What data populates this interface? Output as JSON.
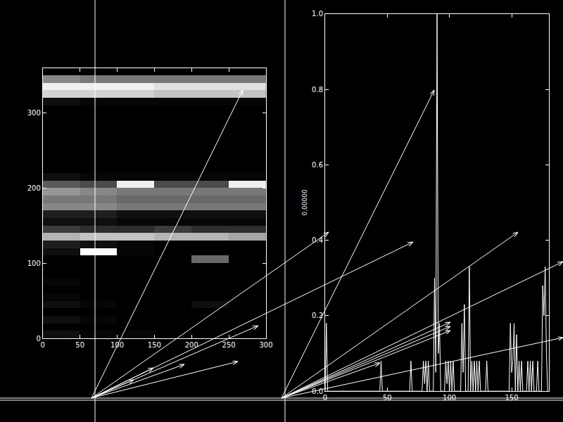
{
  "chart_data": [
    {
      "type": "heatmap",
      "x": [
        25,
        75,
        125,
        175,
        225,
        275
      ],
      "y": [
        5,
        15,
        25,
        35,
        45,
        55,
        65,
        75,
        85,
        95,
        105,
        115,
        125,
        135,
        145,
        155,
        165,
        175,
        185,
        195,
        205,
        215,
        225,
        235,
        245,
        255,
        265,
        275,
        285,
        295,
        305,
        315,
        325,
        335,
        345,
        355
      ],
      "z": [
        [
          0.15,
          0.12,
          0.12,
          0.1,
          0.1,
          0.1
        ],
        [
          0.1,
          0.1,
          0.1,
          0.1,
          0.1,
          0.1
        ],
        [
          0.15,
          0.12,
          0.1,
          0.1,
          0.1,
          0.1
        ],
        [
          0.1,
          0.1,
          0.1,
          0.1,
          0.1,
          0.1
        ],
        [
          0.15,
          0.12,
          0.1,
          0.1,
          0.15,
          0.1
        ],
        [
          0.12,
          0.1,
          0.1,
          0.1,
          0.1,
          0.1
        ],
        [
          0.1,
          0.1,
          0.1,
          0.1,
          0.1,
          0.1
        ],
        [
          0.12,
          0.1,
          0.1,
          0.1,
          0.1,
          0.1
        ],
        [
          0.1,
          0.1,
          0.1,
          0.1,
          0.1,
          0.1
        ],
        [
          0.1,
          0.1,
          0.1,
          0.1,
          0.1,
          0.1
        ],
        [
          0.1,
          0.1,
          0.1,
          0.1,
          0.45,
          0.1
        ],
        [
          0.15,
          0.95,
          0.12,
          0.1,
          0.1,
          0.1
        ],
        [
          0.2,
          0.15,
          0.12,
          0.1,
          0.1,
          0.1
        ],
        [
          0.7,
          0.75,
          0.75,
          0.7,
          0.7,
          0.65
        ],
        [
          0.3,
          0.25,
          0.25,
          0.3,
          0.25,
          0.25
        ],
        [
          0.15,
          0.15,
          0.12,
          0.12,
          0.12,
          0.12
        ],
        [
          0.2,
          0.2,
          0.15,
          0.15,
          0.15,
          0.15
        ],
        [
          0.55,
          0.55,
          0.5,
          0.5,
          0.5,
          0.5
        ],
        [
          0.5,
          0.5,
          0.45,
          0.45,
          0.45,
          0.45
        ],
        [
          0.6,
          0.55,
          0.5,
          0.5,
          0.5,
          0.5
        ],
        [
          0.4,
          0.35,
          0.9,
          0.35,
          0.35,
          0.9
        ],
        [
          0.15,
          0.12,
          0.12,
          0.12,
          0.12,
          0.12
        ],
        [
          0.1,
          0.1,
          0.1,
          0.1,
          0.1,
          0.1
        ],
        [
          0.1,
          0.1,
          0.1,
          0.1,
          0.1,
          0.1
        ],
        [
          0.1,
          0.1,
          0.1,
          0.1,
          0.1,
          0.1
        ],
        [
          0.1,
          0.1,
          0.1,
          0.1,
          0.1,
          0.1
        ],
        [
          0.1,
          0.1,
          0.1,
          0.1,
          0.1,
          0.1
        ],
        [
          0.1,
          0.1,
          0.1,
          0.1,
          0.1,
          0.1
        ],
        [
          0.1,
          0.1,
          0.1,
          0.1,
          0.1,
          0.1
        ],
        [
          0.1,
          0.1,
          0.1,
          0.1,
          0.1,
          0.1
        ],
        [
          0.1,
          0.1,
          0.1,
          0.1,
          0.1,
          0.1
        ],
        [
          0.15,
          0.12,
          0.12,
          0.12,
          0.12,
          0.12
        ],
        [
          0.8,
          0.8,
          0.8,
          0.75,
          0.75,
          0.75
        ],
        [
          0.9,
          0.9,
          0.9,
          0.85,
          0.85,
          0.85
        ],
        [
          0.55,
          0.5,
          0.5,
          0.5,
          0.5,
          0.5
        ],
        [
          0.1,
          0.1,
          0.1,
          0.1,
          0.1,
          0.1
        ]
      ],
      "xlim": [
        0,
        300
      ],
      "xticks": [
        0,
        50,
        100,
        150,
        200,
        250,
        300
      ],
      "ylim": [
        0,
        359
      ],
      "yticks": [
        0,
        100,
        200,
        300
      ]
    },
    {
      "type": "line",
      "y_label": "0.00000",
      "color": "#ffffff",
      "x": [
        0,
        1,
        2,
        44,
        45,
        46,
        68,
        69,
        70,
        78,
        79,
        80,
        81,
        82,
        83,
        84,
        87,
        88,
        89,
        90,
        91,
        92,
        93,
        96,
        97,
        98,
        99,
        100,
        101,
        102,
        103,
        104,
        109,
        110,
        111,
        112,
        113,
        115,
        116,
        117,
        118,
        119,
        120,
        121,
        122,
        123,
        124,
        125,
        129,
        130,
        131,
        148,
        149,
        150,
        151,
        152,
        153,
        154,
        155,
        156,
        157,
        158,
        159,
        162,
        163,
        164,
        165,
        166,
        167,
        168,
        170,
        171,
        172,
        174,
        175,
        176,
        177,
        178,
        179
      ],
      "values": [
        0,
        0.18,
        0,
        0,
        0.08,
        0,
        0,
        0.08,
        0,
        0,
        0.08,
        0.02,
        0.08,
        0,
        0.08,
        0,
        0,
        0.3,
        0.05,
        1.0,
        0.1,
        0.18,
        0,
        0,
        0.08,
        0.02,
        0.08,
        0,
        0.08,
        0,
        0.08,
        0,
        0,
        0.18,
        0.05,
        0.23,
        0,
        0,
        0.33,
        0,
        0.08,
        0,
        0.08,
        0,
        0.08,
        0,
        0.08,
        0,
        0,
        0.08,
        0,
        0,
        0.18,
        0.05,
        0.08,
        0.18,
        0,
        0.15,
        0,
        0.08,
        0,
        0.08,
        0,
        0,
        0.08,
        0,
        0.08,
        0,
        0.08,
        0,
        0,
        0.08,
        0,
        0,
        0.28,
        0.2,
        0.33,
        0.1,
        0
      ],
      "xlim": [
        0,
        180
      ],
      "xticks": [
        0,
        50,
        100,
        150
      ],
      "ylim": [
        0,
        1
      ],
      "yticks": [
        {
          "value": 0,
          "label": "0.0"
        },
        {
          "value": 0.2,
          "label": "0.2"
        },
        {
          "value": 0.4,
          "label": "0.4"
        },
        {
          "value": 0.6,
          "label": "0.6"
        },
        {
          "value": 0.8,
          "label": "0.8"
        },
        {
          "value": 1,
          "label": "1.0"
        }
      ]
    }
  ]
}
